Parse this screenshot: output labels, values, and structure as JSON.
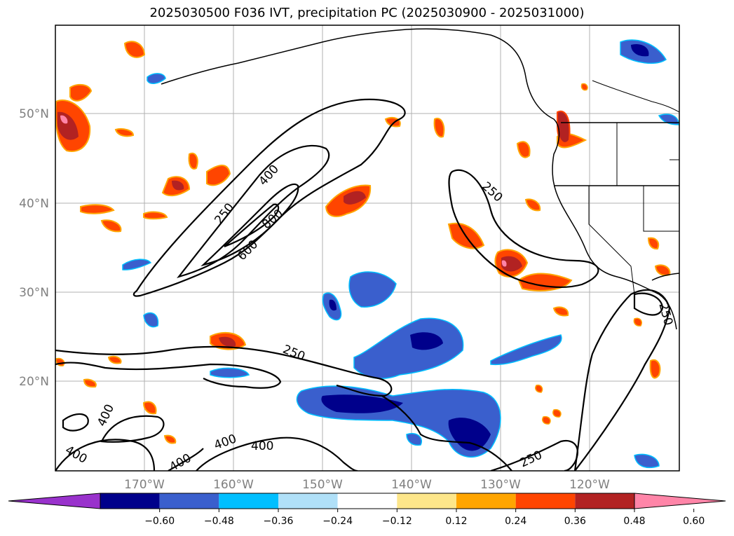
{
  "title": "2025030500 F036 IVT, precipitation PC (2025030900 - 2025031000)",
  "longitude_labels": [
    "170°W",
    "160°W",
    "150°W",
    "140°W",
    "130°W",
    "120°W"
  ],
  "latitude_labels": [
    "50°N",
    "40°N",
    "30°N",
    "20°N"
  ],
  "contour_labels": [
    "250",
    "400",
    "600",
    "800",
    "250",
    "250",
    "400",
    "400",
    "400",
    "400",
    "250",
    "250",
    "400",
    "250"
  ],
  "colorbar": {
    "ticks": [
      "−0.60",
      "−0.48",
      "−0.36",
      "−0.24",
      "−0.12",
      "0.12",
      "0.24",
      "0.36",
      "0.48",
      "0.60"
    ],
    "colors": [
      "#9932cc",
      "#00008b",
      "#3a5fcd",
      "#00bfff",
      "#b0e0f8",
      "#ffffff",
      "#fde68a",
      "#ffa500",
      "#ff4500",
      "#b22222",
      "#ff85a8"
    ]
  }
}
